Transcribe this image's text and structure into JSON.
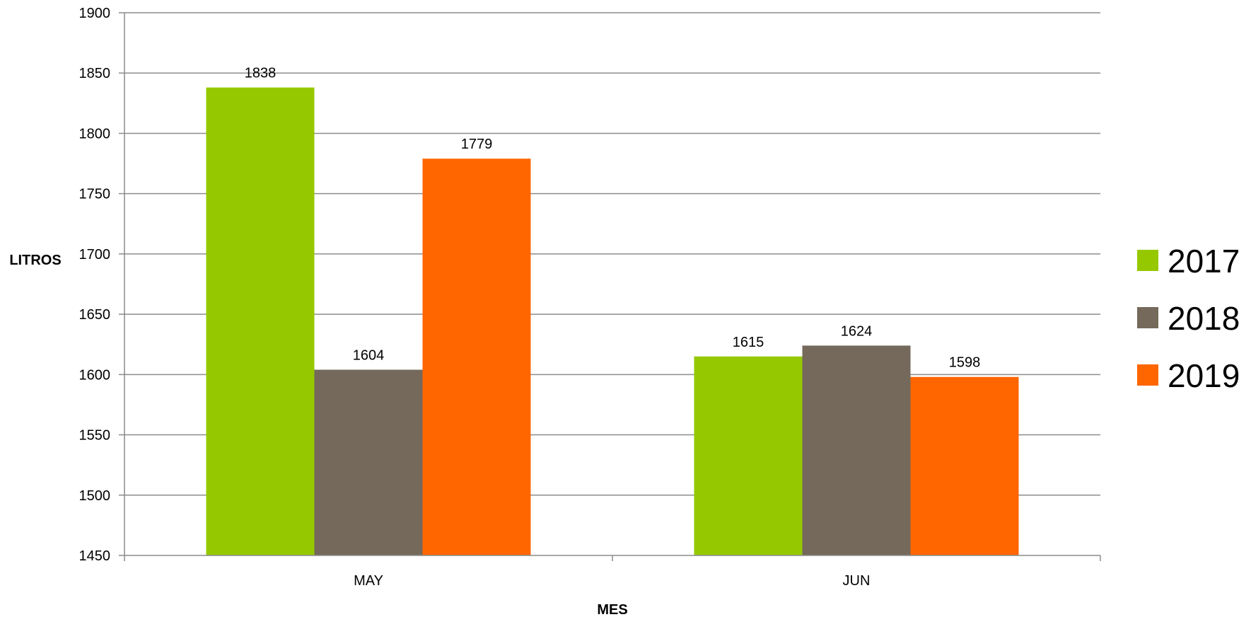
{
  "chart_data": {
    "type": "bar",
    "xlabel": "MES",
    "ylabel": "LITROS",
    "ylim": [
      1450,
      1900
    ],
    "yticks": [
      1450,
      1500,
      1550,
      1600,
      1650,
      1700,
      1750,
      1800,
      1850,
      1900
    ],
    "categories": [
      "MAY",
      "JUN"
    ],
    "series": [
      {
        "name": "2017",
        "values": [
          1838,
          1615
        ],
        "color": "#96C800"
      },
      {
        "name": "2018",
        "values": [
          1604,
          1624
        ],
        "color": "#74695A"
      },
      {
        "name": "2019",
        "values": [
          1779,
          1598
        ],
        "color": "#FF6600"
      }
    ],
    "grid": true,
    "legend_position": "right",
    "data_labels": true
  }
}
